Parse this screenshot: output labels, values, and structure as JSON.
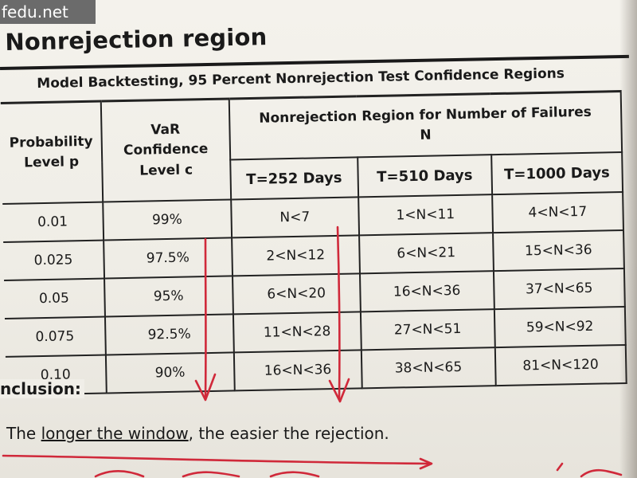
{
  "watermark": "fedu.net",
  "title": "Nonrejection region",
  "table": {
    "caption": "Model Backtesting, 95 Percent Nonrejection Test  Confidence Regions",
    "headers": {
      "probability": "Probability Level p",
      "var_confidence": "VaR Confidence Level c",
      "nonrejection": "Nonrejection Region for Number of Failures N",
      "t252": "T=252 Days",
      "t510": "T=510 Days",
      "t1000": "T=1000 Days"
    },
    "rows": [
      {
        "p": "0.01",
        "c": "99%",
        "t252": "N<7",
        "t510": "1<N<11",
        "t1000": "4<N<17"
      },
      {
        "p": "0.025",
        "c": "97.5%",
        "t252": "2<N<12",
        "t510": "6<N<21",
        "t1000": "15<N<36"
      },
      {
        "p": "0.05",
        "c": "95%",
        "t252": "6<N<20",
        "t510": "16<N<36",
        "t1000": "37<N<65"
      },
      {
        "p": "0.075",
        "c": "92.5%",
        "t252": "11<N<28",
        "t510": "27<N<51",
        "t1000": "59<N<92"
      },
      {
        "p": "0.10",
        "c": "90%",
        "t252": "16<N<36",
        "t510": "38<N<65",
        "t1000": "81<N<120"
      }
    ]
  },
  "conclusion_label": "nclusion:",
  "summary": {
    "before": "The ",
    "underlined": "longer the window",
    "after": ", the easier the rejection."
  },
  "colors": {
    "ink_red": "#d0293a",
    "watermark_bg": "#6b6b6b"
  }
}
